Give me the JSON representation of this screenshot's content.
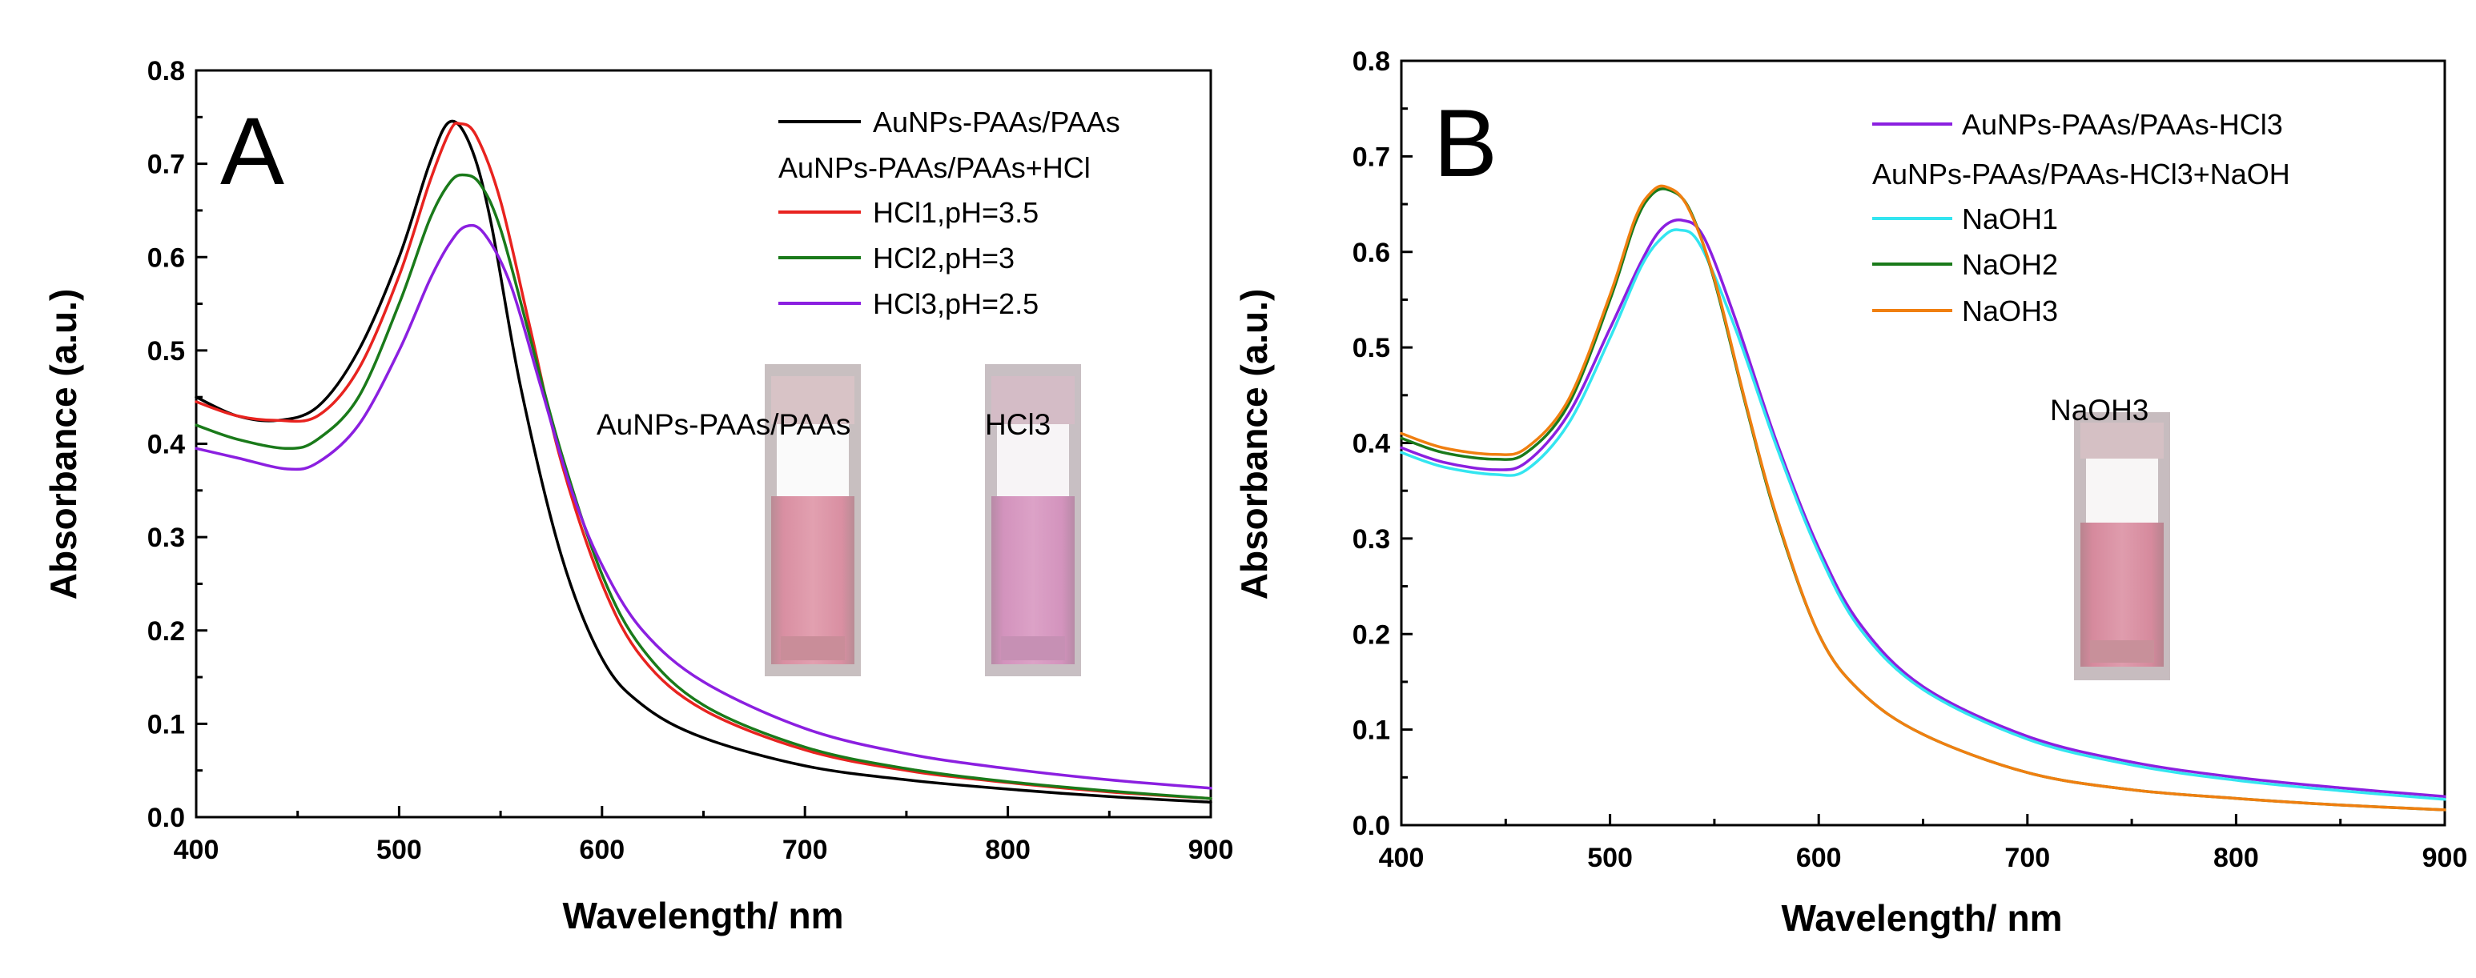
{
  "chart_data": [
    {
      "type": "line",
      "panel_label": "A",
      "xlabel": "Wavelength/ nm",
      "ylabel": "Absorbance (a.u.)",
      "xlim": [
        400,
        900
      ],
      "ylim": [
        0,
        0.8
      ],
      "x_ticks": [
        "400",
        "500",
        "600",
        "700",
        "800",
        "900"
      ],
      "y_ticks": [
        "0.0",
        "0.1",
        "0.2",
        "0.3",
        "0.4",
        "0.5",
        "0.6",
        "0.7",
        "0.8"
      ],
      "legend_placement": "top-right",
      "legend_header": "AuNPs-PAAs/PAAs+HCl",
      "series": [
        {
          "name": "AuNPs-PAAs/PAAs",
          "color": "#000000",
          "x": [
            400,
            420,
            440,
            460,
            480,
            500,
            515,
            525,
            535,
            545,
            560,
            580,
            600,
            620,
            650,
            700,
            750,
            800,
            850,
            900
          ],
          "values": [
            0.45,
            0.43,
            0.425,
            0.44,
            0.5,
            0.6,
            0.7,
            0.745,
            0.72,
            0.64,
            0.46,
            0.28,
            0.17,
            0.12,
            0.085,
            0.055,
            0.04,
            0.03,
            0.022,
            0.016
          ]
        },
        {
          "name": "HCl1,pH=3.5",
          "color": "#e8231f",
          "x": [
            400,
            420,
            440,
            460,
            480,
            500,
            515,
            525,
            530,
            538,
            550,
            565,
            580,
            600,
            620,
            650,
            700,
            750,
            800,
            850,
            900
          ],
          "values": [
            0.445,
            0.43,
            0.425,
            0.43,
            0.48,
            0.58,
            0.68,
            0.735,
            0.743,
            0.73,
            0.66,
            0.52,
            0.38,
            0.25,
            0.17,
            0.115,
            0.072,
            0.05,
            0.037,
            0.027,
            0.02
          ]
        },
        {
          "name": "HCl2,pH=3",
          "color": "#1a7a1a",
          "x": [
            400,
            420,
            445,
            460,
            480,
            500,
            515,
            525,
            532,
            540,
            550,
            565,
            580,
            600,
            620,
            650,
            700,
            750,
            800,
            850,
            900
          ],
          "values": [
            0.42,
            0.405,
            0.395,
            0.405,
            0.45,
            0.55,
            0.64,
            0.68,
            0.688,
            0.678,
            0.63,
            0.51,
            0.39,
            0.26,
            0.18,
            0.12,
            0.075,
            0.052,
            0.038,
            0.028,
            0.02
          ]
        },
        {
          "name": "HCl3,pH=2.5",
          "color": "#8b1fe0",
          "x": [
            400,
            420,
            445,
            460,
            480,
            500,
            515,
            525,
            533,
            542,
            555,
            570,
            585,
            600,
            620,
            650,
            700,
            750,
            800,
            850,
            900
          ],
          "values": [
            0.395,
            0.385,
            0.373,
            0.38,
            0.42,
            0.5,
            0.575,
            0.615,
            0.633,
            0.625,
            0.57,
            0.46,
            0.35,
            0.27,
            0.2,
            0.145,
            0.095,
            0.068,
            0.052,
            0.04,
            0.031
          ]
        }
      ],
      "inset_labels": [
        "AuNPs-PAAs/PAAs",
        "HCl3"
      ]
    },
    {
      "type": "line",
      "panel_label": "B",
      "xlabel": "Wavelength/ nm",
      "ylabel": "Absorbance (a.u.)",
      "xlim": [
        400,
        900
      ],
      "ylim": [
        0,
        0.8
      ],
      "x_ticks": [
        "400",
        "500",
        "600",
        "700",
        "800",
        "900"
      ],
      "y_ticks": [
        "0.0",
        "0.1",
        "0.2",
        "0.3",
        "0.4",
        "0.5",
        "0.6",
        "0.7",
        "0.8"
      ],
      "legend_placement": "top-right",
      "legend_header": "AuNPs-PAAs/PAAs-HCl3+NaOH",
      "series": [
        {
          "name": "AuNPs-PAAs/PAAs-HCl3",
          "color": "#8b1fe0",
          "x": [
            400,
            420,
            445,
            460,
            480,
            500,
            515,
            525,
            535,
            545,
            560,
            580,
            600,
            620,
            650,
            700,
            750,
            800,
            850,
            900
          ],
          "values": [
            0.395,
            0.38,
            0.372,
            0.38,
            0.43,
            0.52,
            0.59,
            0.625,
            0.633,
            0.615,
            0.53,
            0.4,
            0.29,
            0.21,
            0.145,
            0.093,
            0.066,
            0.05,
            0.039,
            0.03
          ]
        },
        {
          "name": "NaOH1",
          "color": "#33e5f0",
          "x": [
            400,
            420,
            445,
            460,
            480,
            500,
            515,
            525,
            533,
            543,
            560,
            580,
            600,
            620,
            650,
            700,
            750,
            800,
            850,
            900
          ],
          "values": [
            0.39,
            0.375,
            0.367,
            0.372,
            0.42,
            0.51,
            0.585,
            0.615,
            0.623,
            0.608,
            0.52,
            0.395,
            0.285,
            0.205,
            0.142,
            0.09,
            0.063,
            0.047,
            0.036,
            0.027
          ]
        },
        {
          "name": "NaOH2",
          "color": "#1a7a1a",
          "x": [
            400,
            420,
            445,
            460,
            480,
            500,
            512,
            520,
            528,
            538,
            550,
            565,
            580,
            600,
            620,
            650,
            700,
            750,
            800,
            850,
            900
          ],
          "values": [
            0.405,
            0.39,
            0.383,
            0.39,
            0.44,
            0.55,
            0.63,
            0.66,
            0.665,
            0.645,
            0.57,
            0.44,
            0.32,
            0.2,
            0.14,
            0.095,
            0.055,
            0.037,
            0.028,
            0.021,
            0.016
          ]
        },
        {
          "name": "NaOH3",
          "color": "#f07f10",
          "x": [
            400,
            420,
            445,
            460,
            480,
            500,
            512,
            520,
            527,
            537,
            550,
            565,
            580,
            600,
            620,
            650,
            700,
            750,
            800,
            850,
            900
          ],
          "values": [
            0.41,
            0.395,
            0.388,
            0.395,
            0.445,
            0.555,
            0.635,
            0.663,
            0.668,
            0.648,
            0.572,
            0.442,
            0.322,
            0.2,
            0.14,
            0.095,
            0.055,
            0.037,
            0.028,
            0.021,
            0.016
          ]
        }
      ],
      "inset_labels": [
        "NaOH3"
      ]
    }
  ]
}
